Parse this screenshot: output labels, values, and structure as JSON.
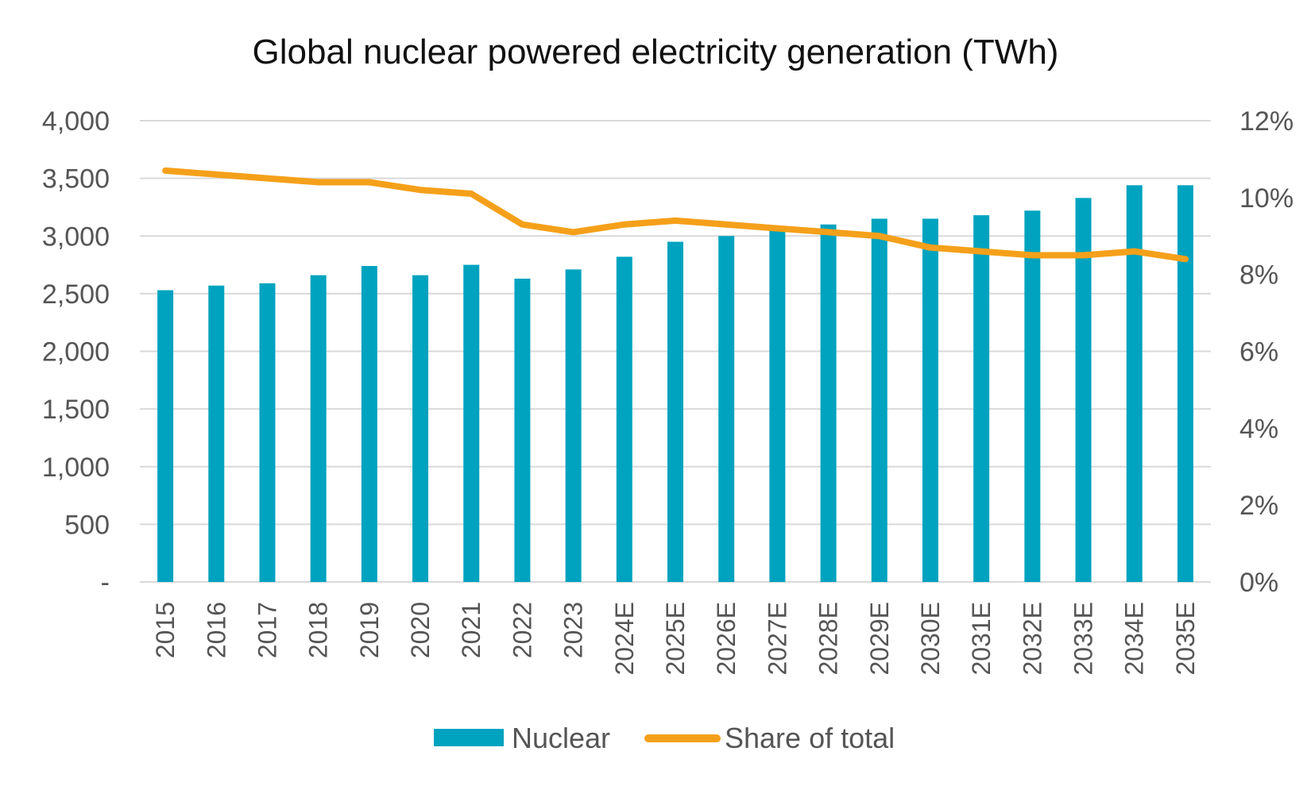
{
  "colors": {
    "bar": "#00A3BF",
    "line": "#F5A01A",
    "grid": "#D9D9D9",
    "text": "#555555"
  },
  "chart_data": {
    "type": "bar",
    "title": "Global nuclear powered electricity generation (TWh)",
    "categories": [
      "2015",
      "2016",
      "2017",
      "2018",
      "2019",
      "2020",
      "2021",
      "2022",
      "2023",
      "2024E",
      "2025E",
      "2026E",
      "2027E",
      "2028E",
      "2029E",
      "2030E",
      "2031E",
      "2032E",
      "2033E",
      "2034E",
      "2035E"
    ],
    "series": [
      {
        "name": "Nuclear",
        "kind": "bar",
        "axis": "left",
        "values": [
          2530,
          2570,
          2590,
          2660,
          2740,
          2660,
          2750,
          2630,
          2710,
          2820,
          2950,
          3000,
          3070,
          3100,
          3150,
          3150,
          3180,
          3220,
          3330,
          3440,
          3440
        ]
      },
      {
        "name": "Share of total",
        "kind": "line",
        "axis": "right",
        "values": [
          10.7,
          10.6,
          10.5,
          10.4,
          10.4,
          10.2,
          10.1,
          9.3,
          9.1,
          9.3,
          9.4,
          9.3,
          9.2,
          9.1,
          9.0,
          8.7,
          8.6,
          8.5,
          8.5,
          8.6,
          8.4
        ]
      }
    ],
    "y_left": {
      "ylim": [
        0,
        4000
      ],
      "ticks": [
        0,
        500,
        1000,
        1500,
        2000,
        2500,
        3000,
        3500,
        4000
      ],
      "tick_labels": [
        "-",
        "500",
        "1,000",
        "1,500",
        "2,000",
        "2,500",
        "3,000",
        "3,500",
        "4,000"
      ]
    },
    "y_right": {
      "ylim": [
        0,
        12
      ],
      "ticks": [
        0,
        2,
        4,
        6,
        8,
        10,
        12
      ],
      "tick_labels": [
        "0%",
        "2%",
        "4%",
        "6%",
        "8%",
        "10%",
        "12%"
      ]
    },
    "grid": true,
    "legend_position": "bottom"
  }
}
